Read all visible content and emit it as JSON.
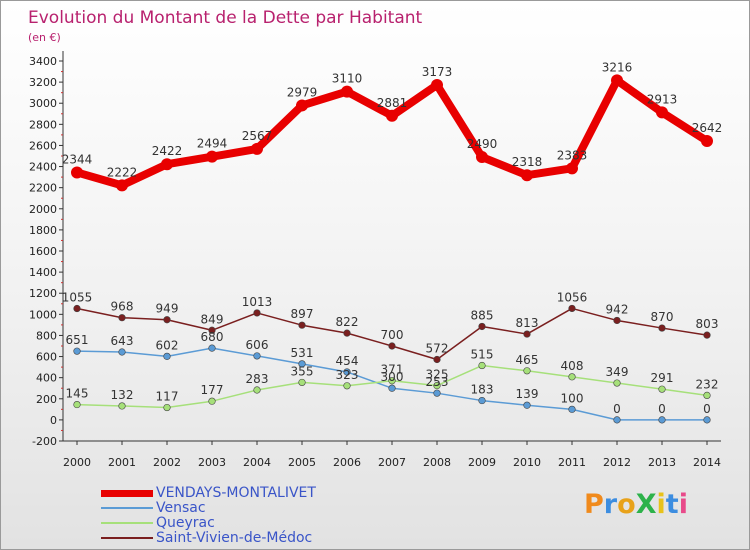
{
  "chart_data": {
    "type": "line",
    "title": "Evolution du Montant de la Dette par Habitant",
    "unit_label": "(en €)",
    "categories": [
      "2000",
      "2001",
      "2002",
      "2003",
      "2004",
      "2005",
      "2006",
      "2007",
      "2008",
      "2009",
      "2010",
      "2011",
      "2012",
      "2013",
      "2014"
    ],
    "ylim": [
      -200,
      3400
    ],
    "yticks": [
      -200,
      0,
      200,
      400,
      600,
      800,
      1000,
      1200,
      1400,
      1600,
      1800,
      2000,
      2200,
      2400,
      2600,
      2800,
      3000,
      3200,
      3400
    ],
    "grid": false,
    "legend_position": "bottom-left",
    "series": [
      {
        "name": "VENDAYS-MONTALIVET",
        "color": "#e80000",
        "values": [
          2344,
          2222,
          2422,
          2494,
          2567,
          2979,
          3110,
          2881,
          3173,
          2490,
          2318,
          2383,
          3216,
          2913,
          2642
        ]
      },
      {
        "name": "Vensac",
        "color": "#5b9bd5",
        "values": [
          651,
          643,
          602,
          680,
          606,
          531,
          454,
          300,
          253,
          183,
          139,
          100,
          0,
          0,
          0
        ]
      },
      {
        "name": "Queyrac",
        "color": "#a6e07a",
        "values": [
          145,
          132,
          117,
          177,
          283,
          355,
          323,
          371,
          325,
          515,
          465,
          408,
          349,
          291,
          232
        ]
      },
      {
        "name": "Saint-Vivien-de-Médoc",
        "color": "#7a1f1f",
        "values": [
          1055,
          968,
          949,
          849,
          1013,
          897,
          822,
          700,
          572,
          885,
          813,
          1056,
          942,
          870,
          803
        ]
      }
    ]
  },
  "logo": {
    "text": "ProXiti"
  }
}
